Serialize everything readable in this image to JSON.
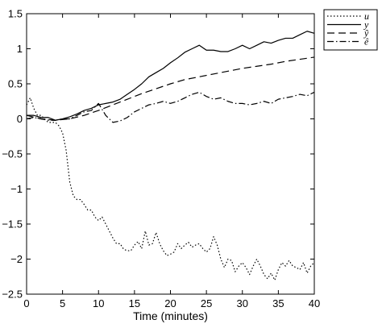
{
  "chart_data": {
    "type": "line",
    "title": "",
    "xlabel": "Time (minutes)",
    "ylabel": "",
    "xlim": [
      0,
      40
    ],
    "ylim": [
      -2.5,
      1.5
    ],
    "x_ticks": [
      0,
      5,
      10,
      15,
      20,
      25,
      30,
      35,
      40
    ],
    "y_ticks": [
      -2.5,
      -2,
      -1.5,
      -1,
      -0.5,
      0,
      0.5,
      1,
      1.5
    ],
    "x_tick_labels": [
      "0",
      "5",
      "10",
      "15",
      "20",
      "25",
      "30",
      "35",
      "40"
    ],
    "y_tick_labels": [
      "−2.5",
      "−2",
      "−1.5",
      "−1",
      "−0.5",
      "0",
      "0.5",
      "1",
      "1.5"
    ],
    "grid": false,
    "legend_position": "outside-top-right",
    "series": [
      {
        "name": "u",
        "line_style": "dotted",
        "color": "#000000",
        "x": [
          0,
          0.5,
          1,
          1.5,
          2,
          2.5,
          3,
          3.5,
          4,
          4.5,
          5,
          5.5,
          6,
          6.5,
          7,
          7.5,
          8,
          8.5,
          9,
          9.5,
          10,
          10.5,
          11,
          11.5,
          12,
          12.5,
          13,
          13.5,
          14,
          14.5,
          15,
          15.5,
          16,
          16.5,
          17,
          17.5,
          18,
          18.5,
          19,
          19.5,
          20,
          20.5,
          21,
          21.5,
          22,
          22.5,
          23,
          23.5,
          24,
          24.5,
          25,
          25.5,
          26,
          26.5,
          27,
          27.5,
          28,
          28.5,
          29,
          29.5,
          30,
          30.5,
          31,
          31.5,
          32,
          32.5,
          33,
          33.5,
          34,
          34.5,
          35,
          35.5,
          36,
          36.5,
          37,
          37.5,
          38,
          38.5,
          39,
          39.5,
          40
        ],
        "y": [
          0.2,
          0.3,
          0.15,
          0.05,
          0.05,
          0.0,
          -0.05,
          -0.05,
          -0.05,
          -0.1,
          -0.2,
          -0.45,
          -0.9,
          -1.1,
          -1.15,
          -1.15,
          -1.22,
          -1.3,
          -1.3,
          -1.4,
          -1.45,
          -1.4,
          -1.5,
          -1.6,
          -1.7,
          -1.78,
          -1.78,
          -1.86,
          -1.88,
          -1.88,
          -1.8,
          -1.75,
          -1.85,
          -1.6,
          -1.8,
          -1.78,
          -1.62,
          -1.78,
          -1.88,
          -1.95,
          -1.93,
          -1.9,
          -1.78,
          -1.85,
          -1.8,
          -1.76,
          -1.83,
          -1.8,
          -1.78,
          -1.85,
          -1.9,
          -1.85,
          -1.68,
          -1.8,
          -2.0,
          -2.12,
          -2.0,
          -2.02,
          -2.18,
          -2.1,
          -2.05,
          -2.12,
          -2.22,
          -2.1,
          -2.0,
          -2.1,
          -2.22,
          -2.28,
          -2.2,
          -2.3,
          -2.15,
          -2.05,
          -2.1,
          -2.02,
          -2.1,
          -2.12,
          -2.15,
          -2.05,
          -2.2,
          -2.1,
          -2.05
        ]
      },
      {
        "name": "y",
        "line_style": "solid",
        "color": "#000000",
        "x": [
          0,
          1,
          2,
          3,
          4,
          5,
          6,
          7,
          8,
          9,
          10,
          11,
          12,
          13,
          14,
          15,
          16,
          17,
          18,
          19,
          20,
          21,
          22,
          23,
          24,
          25,
          26,
          27,
          28,
          29,
          30,
          31,
          32,
          33,
          34,
          35,
          36,
          37,
          38,
          39,
          40
        ],
        "y": [
          0.05,
          0.05,
          0.02,
          0.02,
          -0.02,
          0.0,
          0.03,
          0.07,
          0.12,
          0.15,
          0.2,
          0.22,
          0.24,
          0.28,
          0.35,
          0.42,
          0.5,
          0.6,
          0.66,
          0.72,
          0.8,
          0.87,
          0.95,
          1.0,
          1.05,
          0.98,
          0.98,
          0.96,
          0.96,
          1.0,
          1.05,
          1.0,
          1.05,
          1.1,
          1.08,
          1.12,
          1.15,
          1.15,
          1.2,
          1.25,
          1.22
        ]
      },
      {
        "name": "ŷ",
        "line_style": "dashed",
        "color": "#000000",
        "x": [
          0,
          2,
          4,
          6,
          8,
          10,
          12,
          14,
          16,
          18,
          20,
          22,
          24,
          26,
          28,
          30,
          32,
          34,
          36,
          38,
          40
        ],
        "y": [
          0.05,
          0.0,
          -0.02,
          0.0,
          0.05,
          0.12,
          0.2,
          0.28,
          0.36,
          0.43,
          0.5,
          0.56,
          0.6,
          0.64,
          0.68,
          0.72,
          0.75,
          0.78,
          0.82,
          0.85,
          0.88
        ]
      },
      {
        "name": "ê",
        "line_style": "dashdot",
        "color": "#000000",
        "x": [
          0,
          1,
          2,
          3,
          4,
          5,
          6,
          7,
          8,
          9,
          10,
          11,
          12,
          13,
          14,
          15,
          16,
          17,
          18,
          19,
          20,
          21,
          22,
          23,
          24,
          25,
          26,
          27,
          28,
          29,
          30,
          31,
          32,
          33,
          34,
          35,
          36,
          37,
          38,
          39,
          40
        ],
        "y": [
          0.0,
          0.02,
          0.0,
          -0.02,
          -0.02,
          0.0,
          0.0,
          0.05,
          0.1,
          0.12,
          0.22,
          0.05,
          -0.05,
          -0.03,
          0.02,
          0.1,
          0.15,
          0.2,
          0.22,
          0.25,
          0.22,
          0.25,
          0.3,
          0.35,
          0.38,
          0.32,
          0.28,
          0.3,
          0.25,
          0.22,
          0.22,
          0.2,
          0.22,
          0.25,
          0.22,
          0.28,
          0.3,
          0.32,
          0.35,
          0.33,
          0.38
        ]
      }
    ]
  }
}
